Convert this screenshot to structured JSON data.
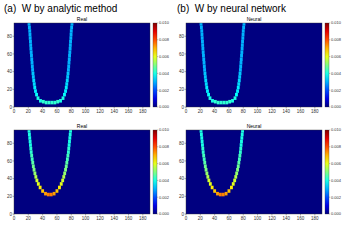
{
  "headings": [
    "(a)  W by analytic method",
    "(b)  W by neural network"
  ],
  "chart_data": [
    {
      "type": "heatmap",
      "title": "Real",
      "xlim": [
        0,
        190
      ],
      "ylim": [
        0,
        95
      ],
      "xticks": [
        0,
        20,
        40,
        60,
        80,
        100,
        120,
        140,
        160,
        180
      ],
      "yticks": [
        0,
        20,
        40,
        60,
        80
      ],
      "colorbar": {
        "range": [
          0,
          0.01
        ],
        "ticks": [
          {
            "value": 0,
            "label": "0.000"
          },
          {
            "value": 0.002,
            "label": "0.002"
          },
          {
            "value": 0.004,
            "label": "0.004"
          },
          {
            "value": 0.006,
            "label": "0.006"
          },
          {
            "value": 0.008,
            "label": "0.008"
          },
          {
            "value": 0.01,
            "label": "0.010"
          }
        ]
      },
      "cells": [
        [
          21,
          94,
          0.003
        ],
        [
          21.5,
          90,
          0.003
        ],
        [
          22,
          86,
          0.003
        ],
        [
          22.3,
          82,
          0.003
        ],
        [
          22.6,
          78,
          0.003
        ],
        [
          23,
          74,
          0.003
        ],
        [
          23.3,
          70,
          0.003
        ],
        [
          23.6,
          66,
          0.003
        ],
        [
          24,
          62,
          0.003
        ],
        [
          24.4,
          58,
          0.003
        ],
        [
          24.8,
          54,
          0.003
        ],
        [
          25.2,
          50,
          0.003
        ],
        [
          25.6,
          46,
          0.003
        ],
        [
          26,
          42,
          0.003
        ],
        [
          26.5,
          38,
          0.0032
        ],
        [
          27,
          34,
          0.0032
        ],
        [
          27.6,
          30,
          0.0034
        ],
        [
          28.3,
          26,
          0.0034
        ],
        [
          29,
          22,
          0.0036
        ],
        [
          30,
          18,
          0.0036
        ],
        [
          31.5,
          14,
          0.0038
        ],
        [
          33.5,
          10,
          0.004
        ],
        [
          37,
          7,
          0.004
        ],
        [
          41,
          6,
          0.0042
        ],
        [
          45,
          5,
          0.0042
        ],
        [
          49,
          5,
          0.0042
        ],
        [
          53,
          5,
          0.0042
        ],
        [
          57,
          5,
          0.0042
        ],
        [
          61,
          6,
          0.0042
        ],
        [
          65,
          7,
          0.004
        ],
        [
          68.5,
          10,
          0.004
        ],
        [
          70.5,
          14,
          0.0038
        ],
        [
          72,
          18,
          0.0036
        ],
        [
          73,
          22,
          0.0036
        ],
        [
          73.7,
          26,
          0.0034
        ],
        [
          74.4,
          30,
          0.0034
        ],
        [
          75,
          34,
          0.0032
        ],
        [
          75.5,
          38,
          0.0032
        ],
        [
          76,
          42,
          0.003
        ],
        [
          76.4,
          46,
          0.003
        ],
        [
          76.8,
          50,
          0.003
        ],
        [
          77.2,
          54,
          0.003
        ],
        [
          77.6,
          58,
          0.003
        ],
        [
          78,
          62,
          0.003
        ],
        [
          78.4,
          66,
          0.003
        ],
        [
          78.7,
          70,
          0.003
        ],
        [
          79,
          74,
          0.003
        ],
        [
          79.4,
          78,
          0.003
        ],
        [
          79.7,
          82,
          0.003
        ],
        [
          80,
          86,
          0.003
        ],
        [
          80.5,
          90,
          0.003
        ],
        [
          81,
          94,
          0.003
        ]
      ]
    },
    {
      "type": "heatmap",
      "title": "Neural",
      "xlim": [
        0,
        190
      ],
      "ylim": [
        0,
        95
      ],
      "xticks": [
        0,
        20,
        40,
        60,
        80,
        100,
        120,
        140,
        160,
        180
      ],
      "yticks": [
        0,
        20,
        40,
        60,
        80
      ],
      "colorbar": {
        "range": [
          0,
          0.01
        ],
        "ticks": [
          {
            "value": 0,
            "label": "0.000"
          },
          {
            "value": 0.002,
            "label": "0.002"
          },
          {
            "value": 0.004,
            "label": "0.004"
          },
          {
            "value": 0.006,
            "label": "0.006"
          },
          {
            "value": 0.008,
            "label": "0.008"
          },
          {
            "value": 0.01,
            "label": "0.010"
          }
        ]
      },
      "cells": [
        [
          21,
          94,
          0.003
        ],
        [
          21.5,
          90,
          0.003
        ],
        [
          22,
          86,
          0.003
        ],
        [
          22.3,
          82,
          0.003
        ],
        [
          22.6,
          78,
          0.003
        ],
        [
          23,
          74,
          0.003
        ],
        [
          23.3,
          70,
          0.003
        ],
        [
          23.6,
          66,
          0.003
        ],
        [
          24,
          62,
          0.003
        ],
        [
          24.4,
          58,
          0.003
        ],
        [
          24.8,
          54,
          0.003
        ],
        [
          25.2,
          50,
          0.003
        ],
        [
          25.6,
          46,
          0.003
        ],
        [
          26,
          42,
          0.003
        ],
        [
          26.5,
          38,
          0.0032
        ],
        [
          27,
          34,
          0.0032
        ],
        [
          27.6,
          30,
          0.0034
        ],
        [
          28.3,
          26,
          0.0034
        ],
        [
          29,
          22,
          0.0036
        ],
        [
          30,
          18,
          0.0036
        ],
        [
          31.5,
          14,
          0.0038
        ],
        [
          33.5,
          10,
          0.004
        ],
        [
          37,
          7,
          0.004
        ],
        [
          41,
          6,
          0.0042
        ],
        [
          45,
          5,
          0.0042
        ],
        [
          49,
          5,
          0.0042
        ],
        [
          53,
          5,
          0.0042
        ],
        [
          57,
          5,
          0.0042
        ],
        [
          61,
          6,
          0.0042
        ],
        [
          65,
          7,
          0.004
        ],
        [
          68.5,
          10,
          0.004
        ],
        [
          70.5,
          14,
          0.0038
        ],
        [
          72,
          18,
          0.0036
        ],
        [
          73,
          22,
          0.0036
        ],
        [
          73.7,
          26,
          0.0034
        ],
        [
          74.4,
          30,
          0.0034
        ],
        [
          75,
          34,
          0.0032
        ],
        [
          75.5,
          38,
          0.0032
        ],
        [
          76,
          42,
          0.003
        ],
        [
          76.4,
          46,
          0.003
        ],
        [
          76.8,
          50,
          0.003
        ],
        [
          77.2,
          54,
          0.003
        ],
        [
          77.6,
          58,
          0.003
        ],
        [
          78,
          62,
          0.003
        ],
        [
          78.4,
          66,
          0.003
        ],
        [
          78.7,
          70,
          0.003
        ],
        [
          79,
          74,
          0.003
        ],
        [
          79.4,
          78,
          0.003
        ],
        [
          79.7,
          82,
          0.003
        ],
        [
          80,
          86,
          0.003
        ],
        [
          80.5,
          90,
          0.003
        ],
        [
          81,
          94,
          0.003
        ]
      ]
    },
    {
      "type": "heatmap",
      "title": "Real",
      "xlim": [
        0,
        190
      ],
      "ylim": [
        0,
        95
      ],
      "xticks": [
        0,
        20,
        40,
        60,
        80,
        100,
        120,
        140,
        160,
        180
      ],
      "yticks": [
        0,
        20,
        40,
        60,
        80
      ],
      "colorbar": {
        "range": [
          0,
          0.01
        ],
        "ticks": [
          {
            "value": 0,
            "label": "0.000"
          },
          {
            "value": 0.002,
            "label": "0.002"
          },
          {
            "value": 0.004,
            "label": "0.004"
          },
          {
            "value": 0.006,
            "label": "0.006"
          },
          {
            "value": 0.008,
            "label": "0.008"
          },
          {
            "value": 0.01,
            "label": "0.010"
          }
        ]
      },
      "cells": [
        [
          21,
          94,
          0.004
        ],
        [
          21.5,
          90,
          0.004
        ],
        [
          22,
          86,
          0.004
        ],
        [
          22.5,
          82,
          0.004
        ],
        [
          23,
          78,
          0.004
        ],
        [
          23.5,
          74,
          0.0042
        ],
        [
          24,
          70,
          0.0042
        ],
        [
          24.7,
          66,
          0.0044
        ],
        [
          25.4,
          62,
          0.0044
        ],
        [
          26.2,
          58,
          0.0046
        ],
        [
          27,
          54,
          0.0048
        ],
        [
          28,
          50,
          0.005
        ],
        [
          29.2,
          46,
          0.0052
        ],
        [
          30.5,
          42,
          0.0055
        ],
        [
          32,
          38,
          0.0058
        ],
        [
          34,
          34,
          0.006
        ],
        [
          36.5,
          30,
          0.0064
        ],
        [
          40,
          26,
          0.0068
        ],
        [
          44,
          23,
          0.0072
        ],
        [
          48,
          22,
          0.0075
        ],
        [
          52,
          22,
          0.0075
        ],
        [
          56,
          23,
          0.0072
        ],
        [
          60,
          26,
          0.0068
        ],
        [
          63.5,
          30,
          0.0064
        ],
        [
          66,
          34,
          0.006
        ],
        [
          68,
          38,
          0.0058
        ],
        [
          69.5,
          42,
          0.0055
        ],
        [
          70.8,
          46,
          0.0052
        ],
        [
          72,
          50,
          0.005
        ],
        [
          73,
          54,
          0.0048
        ],
        [
          73.8,
          58,
          0.0046
        ],
        [
          74.6,
          62,
          0.0044
        ],
        [
          75.3,
          66,
          0.0044
        ],
        [
          76,
          70,
          0.0042
        ],
        [
          76.5,
          74,
          0.0042
        ],
        [
          77,
          78,
          0.004
        ],
        [
          77.5,
          82,
          0.004
        ],
        [
          78,
          86,
          0.004
        ],
        [
          78.5,
          90,
          0.004
        ],
        [
          79,
          94,
          0.004
        ]
      ]
    },
    {
      "type": "heatmap",
      "title": "Neural",
      "xlim": [
        0,
        190
      ],
      "ylim": [
        0,
        95
      ],
      "xticks": [
        0,
        20,
        40,
        60,
        80,
        100,
        120,
        140,
        160,
        180
      ],
      "yticks": [
        0,
        20,
        40,
        60,
        80
      ],
      "colorbar": {
        "range": [
          0,
          0.01
        ],
        "ticks": [
          {
            "value": 0,
            "label": "0.000"
          },
          {
            "value": 0.002,
            "label": "0.002"
          },
          {
            "value": 0.004,
            "label": "0.004"
          },
          {
            "value": 0.006,
            "label": "0.006"
          },
          {
            "value": 0.008,
            "label": "0.008"
          },
          {
            "value": 0.01,
            "label": "0.010"
          }
        ]
      },
      "cells": [
        [
          21,
          94,
          0.004
        ],
        [
          21.5,
          90,
          0.004
        ],
        [
          22,
          86,
          0.004
        ],
        [
          22.5,
          82,
          0.004
        ],
        [
          23,
          78,
          0.004
        ],
        [
          23.5,
          74,
          0.0042
        ],
        [
          24,
          70,
          0.0042
        ],
        [
          24.7,
          66,
          0.0044
        ],
        [
          25.4,
          62,
          0.0044
        ],
        [
          26.2,
          58,
          0.0046
        ],
        [
          27,
          54,
          0.0048
        ],
        [
          28,
          50,
          0.005
        ],
        [
          29.2,
          46,
          0.0052
        ],
        [
          30.5,
          42,
          0.0055
        ],
        [
          32,
          38,
          0.0058
        ],
        [
          34,
          34,
          0.006
        ],
        [
          36.5,
          30,
          0.0064
        ],
        [
          40,
          26,
          0.0068
        ],
        [
          44,
          23,
          0.0072
        ],
        [
          48,
          22,
          0.0075
        ],
        [
          52,
          22,
          0.0075
        ],
        [
          56,
          23,
          0.0072
        ],
        [
          60,
          26,
          0.0068
        ],
        [
          63.5,
          30,
          0.0064
        ],
        [
          66,
          34,
          0.006
        ],
        [
          68,
          38,
          0.0058
        ],
        [
          69.5,
          42,
          0.0055
        ],
        [
          70.8,
          46,
          0.0052
        ],
        [
          72,
          50,
          0.005
        ],
        [
          73,
          54,
          0.0048
        ],
        [
          73.8,
          58,
          0.0046
        ],
        [
          74.6,
          62,
          0.0044
        ],
        [
          75.3,
          66,
          0.0044
        ],
        [
          76,
          70,
          0.0042
        ],
        [
          76.5,
          74,
          0.0042
        ],
        [
          77,
          78,
          0.004
        ],
        [
          77.5,
          82,
          0.004
        ],
        [
          78,
          86,
          0.004
        ],
        [
          78.5,
          90,
          0.004
        ],
        [
          79,
          94,
          0.004
        ]
      ]
    }
  ]
}
